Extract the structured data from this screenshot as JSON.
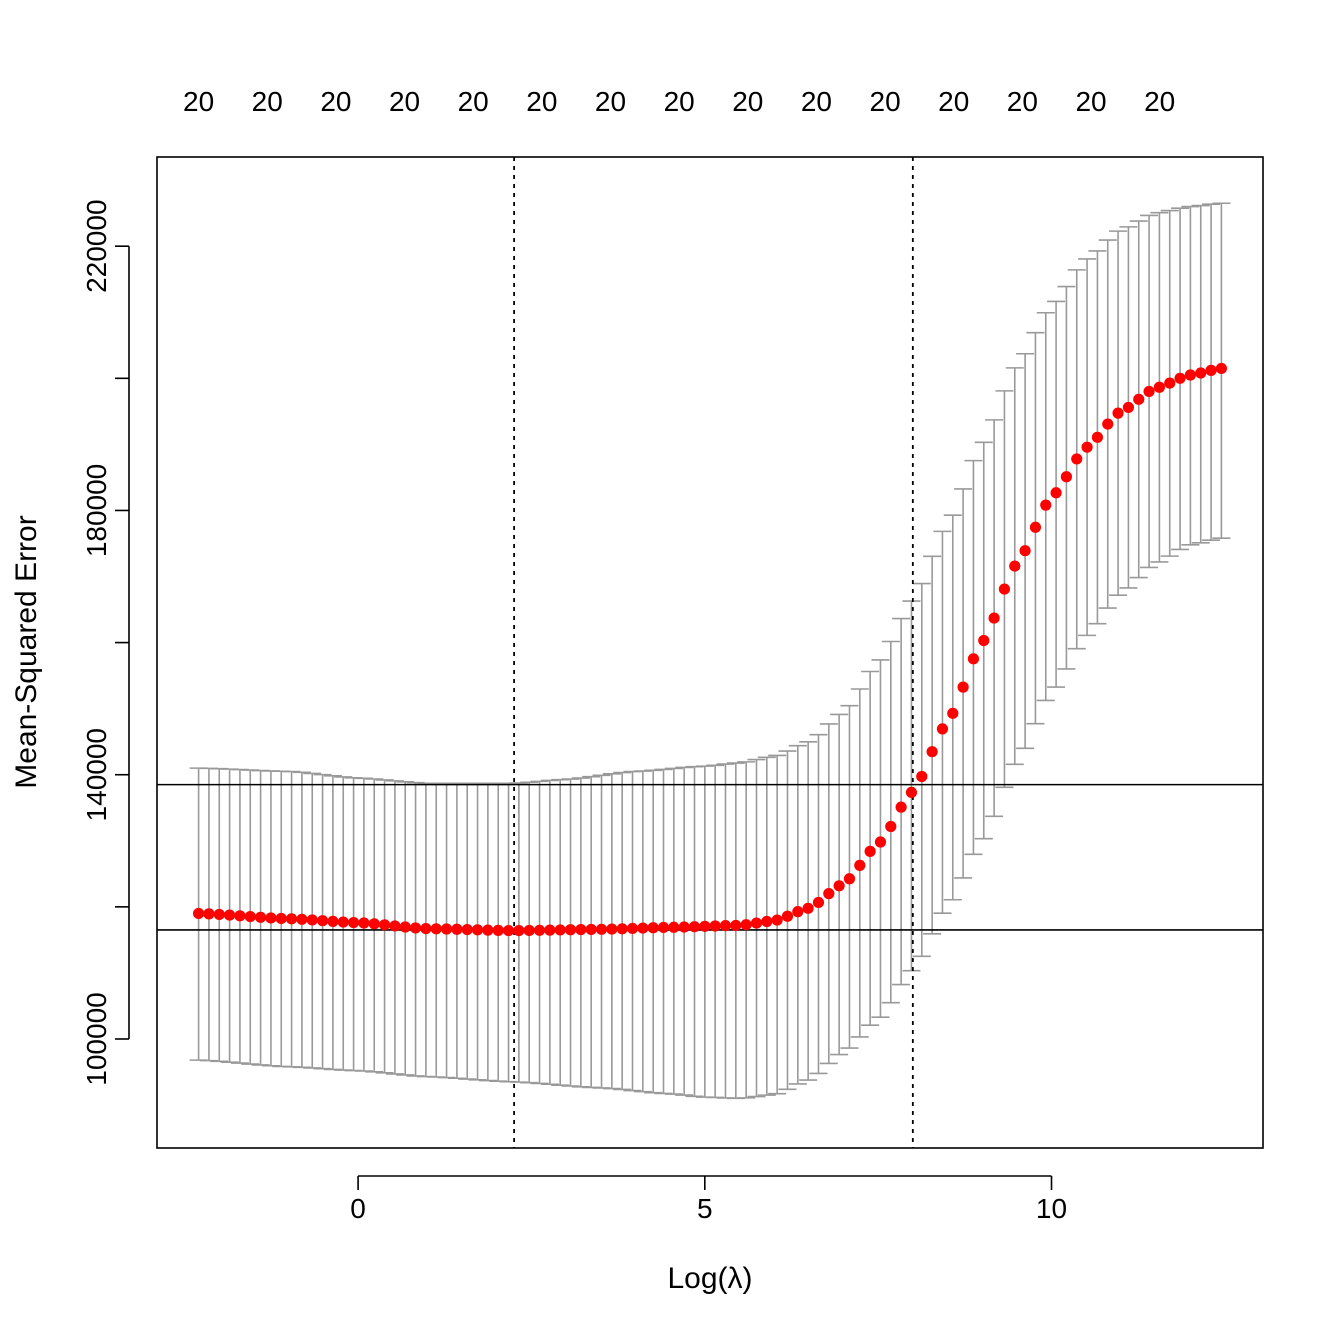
{
  "chart_data": {
    "type": "scatter",
    "xlabel": "Log(λ)",
    "ylabel": "Mean-Squared Error",
    "xlim": [
      -2.9,
      13.05
    ],
    "ylim": [
      83500,
      233500
    ],
    "x_ticks": [
      0,
      5,
      10
    ],
    "x_tick_labels": [
      "0",
      "5",
      "10"
    ],
    "y_ticks": [
      100000,
      120000,
      140000,
      160000,
      180000,
      200000,
      220000
    ],
    "y_tick_labels": [
      "100000",
      "",
      "140000",
      "",
      "180000",
      "",
      "220000"
    ],
    "top_axis": {
      "ticks": [
        -2.3,
        -1.31,
        -0.32,
        0.67,
        1.66,
        2.65,
        3.64,
        4.63,
        5.62,
        6.61,
        7.6,
        8.59,
        9.58,
        10.57,
        11.56
      ],
      "labels": [
        "20",
        "20",
        "20",
        "20",
        "20",
        "20",
        "20",
        "20",
        "20",
        "20",
        "20",
        "20",
        "20",
        "20",
        "20"
      ]
    },
    "vlines": [
      2.25,
      8.0
    ],
    "hlines": [
      116500,
      138500
    ],
    "series": [
      {
        "x_range": [
          -2.3,
          12.45
        ],
        "n_points": 100,
        "color": "#ff0000",
        "err_color": "#999999",
        "mse_profile": [
          [
            -2.3,
            119000
          ],
          [
            -1.0,
            118200
          ],
          [
            0.0,
            117600
          ],
          [
            1.0,
            116700
          ],
          [
            2.25,
            116400
          ],
          [
            3.5,
            116600
          ],
          [
            4.5,
            116900
          ],
          [
            5.5,
            117200
          ],
          [
            6.0,
            117900
          ],
          [
            6.5,
            119800
          ],
          [
            7.0,
            123500
          ],
          [
            7.5,
            129500
          ],
          [
            8.0,
            137500
          ],
          [
            8.5,
            148000
          ],
          [
            9.0,
            160000
          ],
          [
            9.5,
            172000
          ],
          [
            10.0,
            182000
          ],
          [
            10.5,
            189500
          ],
          [
            11.0,
            195000
          ],
          [
            11.5,
            198500
          ],
          [
            12.0,
            200500
          ],
          [
            12.45,
            201500
          ]
        ],
        "upper_profile": [
          [
            -2.3,
            141000
          ],
          [
            -1.0,
            140500
          ],
          [
            0.0,
            139500
          ],
          [
            1.0,
            138700
          ],
          [
            2.25,
            138700
          ],
          [
            3.0,
            139300
          ],
          [
            4.0,
            140500
          ],
          [
            5.0,
            141300
          ],
          [
            5.5,
            141800
          ],
          [
            6.0,
            142800
          ],
          [
            6.5,
            145000
          ],
          [
            7.0,
            149500
          ],
          [
            7.5,
            157000
          ],
          [
            8.0,
            166500
          ],
          [
            8.5,
            178000
          ],
          [
            9.0,
            190000
          ],
          [
            9.5,
            202000
          ],
          [
            10.0,
            211000
          ],
          [
            10.5,
            218000
          ],
          [
            11.0,
            222500
          ],
          [
            11.5,
            225000
          ],
          [
            12.0,
            226000
          ],
          [
            12.45,
            226500
          ]
        ],
        "lower_profile": [
          [
            -2.3,
            96800
          ],
          [
            -1.0,
            95800
          ],
          [
            0.0,
            95200
          ],
          [
            1.0,
            94300
          ],
          [
            2.25,
            93500
          ],
          [
            3.5,
            92600
          ],
          [
            4.5,
            91700
          ],
          [
            5.0,
            91200
          ],
          [
            5.5,
            91000
          ],
          [
            6.0,
            91600
          ],
          [
            6.5,
            93800
          ],
          [
            7.0,
            98000
          ],
          [
            7.5,
            103000
          ],
          [
            8.0,
            110500
          ],
          [
            8.5,
            120000
          ],
          [
            9.0,
            130000
          ],
          [
            9.5,
            142000
          ],
          [
            10.0,
            152500
          ],
          [
            10.5,
            161000
          ],
          [
            11.0,
            167500
          ],
          [
            11.5,
            172000
          ],
          [
            12.0,
            174800
          ],
          [
            12.45,
            175800
          ]
        ]
      }
    ]
  }
}
